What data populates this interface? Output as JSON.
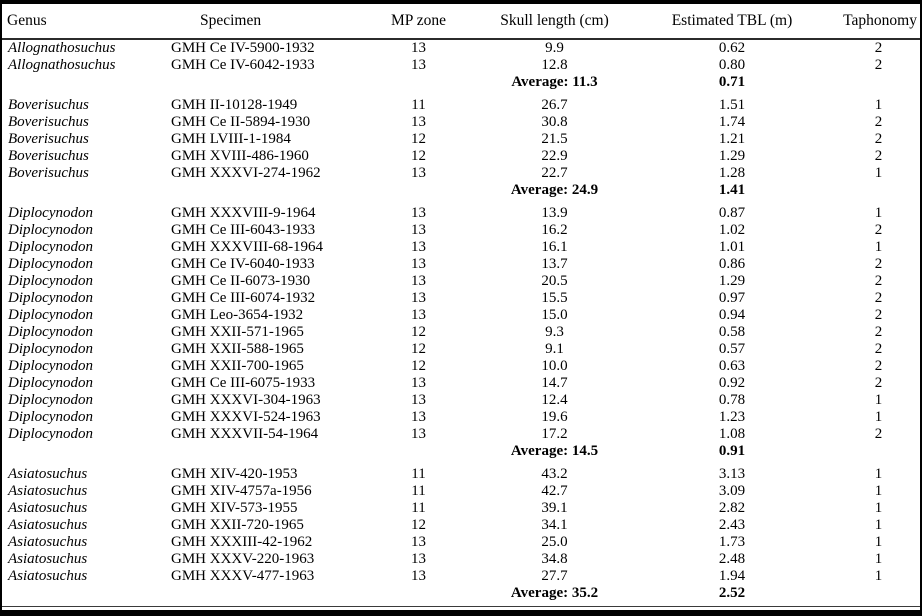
{
  "table": {
    "columns": [
      "Genus",
      "Specimen",
      "MP zone",
      "Skull length (cm)",
      "Estimated TBL (m)",
      "Taphonomy"
    ],
    "groups": [
      {
        "rows": [
          {
            "genus": "Allognathosuchus",
            "specimen": "GMH Ce IV-5900-1932",
            "mp_zone": "13",
            "skull_length_cm": "9.9",
            "estimated_tbl_m": "0.62",
            "taphonomy": "2"
          },
          {
            "genus": "Allognathosuchus",
            "specimen": "GMH Ce IV-6042-1933",
            "mp_zone": "13",
            "skull_length_cm": "12.8",
            "estimated_tbl_m": "0.80",
            "taphonomy": "2"
          }
        ],
        "average": {
          "skull_length_label": "Average: 11.3",
          "estimated_tbl_m": "0.71"
        }
      },
      {
        "rows": [
          {
            "genus": "Boverisuchus",
            "specimen": "GMH II-10128-1949",
            "mp_zone": "11",
            "skull_length_cm": "26.7",
            "estimated_tbl_m": "1.51",
            "taphonomy": "1"
          },
          {
            "genus": "Boverisuchus",
            "specimen": "GMH Ce II-5894-1930",
            "mp_zone": "13",
            "skull_length_cm": "30.8",
            "estimated_tbl_m": "1.74",
            "taphonomy": "2"
          },
          {
            "genus": "Boverisuchus",
            "specimen": "GMH LVIII-1-1984",
            "mp_zone": "12",
            "skull_length_cm": "21.5",
            "estimated_tbl_m": "1.21",
            "taphonomy": "2"
          },
          {
            "genus": "Boverisuchus",
            "specimen": "GMH XVIII-486-1960",
            "mp_zone": "12",
            "skull_length_cm": "22.9",
            "estimated_tbl_m": "1.29",
            "taphonomy": "2"
          },
          {
            "genus": "Boverisuchus",
            "specimen": "GMH XXXVI-274-1962",
            "mp_zone": "13",
            "skull_length_cm": "22.7",
            "estimated_tbl_m": "1.28",
            "taphonomy": "1"
          }
        ],
        "average": {
          "skull_length_label": "Average: 24.9",
          "estimated_tbl_m": "1.41"
        }
      },
      {
        "rows": [
          {
            "genus": "Diplocynodon",
            "specimen": "GMH XXXVIII-9-1964",
            "mp_zone": "13",
            "skull_length_cm": "13.9",
            "estimated_tbl_m": "0.87",
            "taphonomy": "1"
          },
          {
            "genus": "Diplocynodon",
            "specimen": "GMH Ce III-6043-1933",
            "mp_zone": "13",
            "skull_length_cm": "16.2",
            "estimated_tbl_m": "1.02",
            "taphonomy": "2"
          },
          {
            "genus": "Diplocynodon",
            "specimen": "GMH XXXVIII-68-1964",
            "mp_zone": "13",
            "skull_length_cm": "16.1",
            "estimated_tbl_m": "1.01",
            "taphonomy": "1"
          },
          {
            "genus": "Diplocynodon",
            "specimen": "GMH Ce IV-6040-1933",
            "mp_zone": "13",
            "skull_length_cm": "13.7",
            "estimated_tbl_m": "0.86",
            "taphonomy": "2"
          },
          {
            "genus": "Diplocynodon",
            "specimen": "GMH Ce II-6073-1930",
            "mp_zone": "13",
            "skull_length_cm": "20.5",
            "estimated_tbl_m": "1.29",
            "taphonomy": "2"
          },
          {
            "genus": "Diplocynodon",
            "specimen": "GMH Ce III-6074-1932",
            "mp_zone": "13",
            "skull_length_cm": "15.5",
            "estimated_tbl_m": "0.97",
            "taphonomy": "2"
          },
          {
            "genus": "Diplocynodon",
            "specimen": "GMH Leo-3654-1932",
            "mp_zone": "13",
            "skull_length_cm": "15.0",
            "estimated_tbl_m": "0.94",
            "taphonomy": "2"
          },
          {
            "genus": "Diplocynodon",
            "specimen": "GMH XXII-571-1965",
            "mp_zone": "12",
            "skull_length_cm": "9.3",
            "estimated_tbl_m": "0.58",
            "taphonomy": "2"
          },
          {
            "genus": "Diplocynodon",
            "specimen": "GMH XXII-588-1965",
            "mp_zone": "12",
            "skull_length_cm": "9.1",
            "estimated_tbl_m": "0.57",
            "taphonomy": "2"
          },
          {
            "genus": "Diplocynodon",
            "specimen": "GMH XXII-700-1965",
            "mp_zone": "12",
            "skull_length_cm": "10.0",
            "estimated_tbl_m": "0.63",
            "taphonomy": "2"
          },
          {
            "genus": "Diplocynodon",
            "specimen": "GMH Ce III-6075-1933",
            "mp_zone": "13",
            "skull_length_cm": "14.7",
            "estimated_tbl_m": "0.92",
            "taphonomy": "2"
          },
          {
            "genus": "Diplocynodon",
            "specimen": "GMH XXXVI-304-1963",
            "mp_zone": "13",
            "skull_length_cm": "12.4",
            "estimated_tbl_m": "0.78",
            "taphonomy": "1"
          },
          {
            "genus": "Diplocynodon",
            "specimen": "GMH XXXVI-524-1963",
            "mp_zone": "13",
            "skull_length_cm": "19.6",
            "estimated_tbl_m": "1.23",
            "taphonomy": "1"
          },
          {
            "genus": "Diplocynodon",
            "specimen": "GMH XXXVII-54-1964",
            "mp_zone": "13",
            "skull_length_cm": "17.2",
            "estimated_tbl_m": "1.08",
            "taphonomy": "2"
          }
        ],
        "average": {
          "skull_length_label": "Average: 14.5",
          "estimated_tbl_m": "0.91"
        }
      },
      {
        "rows": [
          {
            "genus": "Asiatosuchus",
            "specimen": "GMH XIV-420-1953",
            "mp_zone": "11",
            "skull_length_cm": "43.2",
            "estimated_tbl_m": "3.13",
            "taphonomy": "1"
          },
          {
            "genus": "Asiatosuchus",
            "specimen": "GMH XIV-4757a-1956",
            "mp_zone": "11",
            "skull_length_cm": "42.7",
            "estimated_tbl_m": "3.09",
            "taphonomy": "1"
          },
          {
            "genus": "Asiatosuchus",
            "specimen": "GMH XIV-573-1955",
            "mp_zone": "11",
            "skull_length_cm": "39.1",
            "estimated_tbl_m": "2.82",
            "taphonomy": "1"
          },
          {
            "genus": "Asiatosuchus",
            "specimen": "GMH XXII-720-1965",
            "mp_zone": "12",
            "skull_length_cm": "34.1",
            "estimated_tbl_m": "2.43",
            "taphonomy": "1"
          },
          {
            "genus": "Asiatosuchus",
            "specimen": "GMH XXXIII-42-1962",
            "mp_zone": "13",
            "skull_length_cm": "25.0",
            "estimated_tbl_m": "1.73",
            "taphonomy": "1"
          },
          {
            "genus": "Asiatosuchus",
            "specimen": "GMH XXXV-220-1963",
            "mp_zone": "13",
            "skull_length_cm": "34.8",
            "estimated_tbl_m": "2.48",
            "taphonomy": "1"
          },
          {
            "genus": "Asiatosuchus",
            "specimen": "GMH XXXV-477-1963",
            "mp_zone": "13",
            "skull_length_cm": "27.7",
            "estimated_tbl_m": "1.94",
            "taphonomy": "1"
          }
        ],
        "average": {
          "skull_length_label": "Average: 35.2",
          "estimated_tbl_m": "2.52"
        }
      }
    ]
  }
}
